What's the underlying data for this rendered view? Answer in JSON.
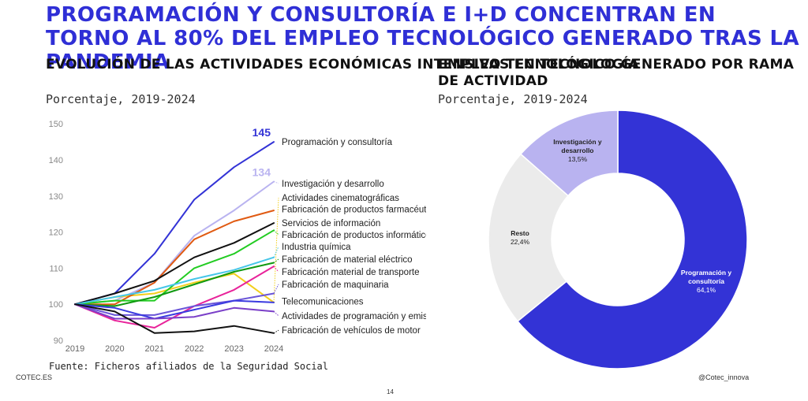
{
  "page": {
    "headline": "PROGRAMACIÓN Y CONSULTORÍA E I+D CONCENTRAN EN TORNO AL 80% DEL EMPLEO TECNOLÓGICO GENERADO TRAS LA PANDEMIA",
    "source": "Fuente: Ficheros afiliados de la Seguridad Social",
    "footer_left": "COTEC.ES",
    "footer_right": "@Cotec_innova",
    "page_number": "14"
  },
  "chart_data": [
    {
      "type": "line",
      "title": "EVOLUCIÓN DE LAS ACTIVIDADES ECONÓMICAS INTENSIVAS EN TECNOLOGÍA",
      "subtitle": "Porcentaje, 2019-2024",
      "x": [
        "2019",
        "2020",
        "2021",
        "2022",
        "2023",
        "2024"
      ],
      "ylim": [
        90,
        150
      ],
      "yticks": [
        90,
        100,
        110,
        120,
        130,
        140,
        150
      ],
      "grid": false,
      "value_labels": [
        {
          "series": "Programación y consultoría",
          "text": "145"
        },
        {
          "series": "Investigación y desarrollo",
          "text": "134"
        }
      ],
      "series": [
        {
          "name": "Programación y consultoría",
          "color": "#3333d6",
          "values": [
            100,
            103,
            114,
            129,
            138,
            145
          ],
          "label_y": 145
        },
        {
          "name": "Investigación y desarrollo",
          "color": "#b9b3f0",
          "values": [
            100,
            101,
            106,
            119,
            126,
            134
          ],
          "label_y": 133.5
        },
        {
          "name": "Actividades cinematográficas",
          "color": "#f2cf1c",
          "values": [
            100,
            102,
            103,
            106,
            108.5,
            100.5
          ],
          "label_y": 129.5
        },
        {
          "name": "Fabricación de productos farmacéuticos",
          "color": "#e05a12",
          "values": [
            100,
            100,
            106,
            118,
            123,
            126
          ],
          "label_y": 126.3
        },
        {
          "name": "Servicios de información",
          "color": "#111111",
          "values": [
            100,
            103,
            106.5,
            113,
            117,
            122.5
          ],
          "label_y": 122.5
        },
        {
          "name": "Fabricación de productos informáticos",
          "color": "#22cc22",
          "values": [
            100,
            101,
            101,
            110,
            114,
            120.5
          ],
          "label_y": 119.3
        },
        {
          "name": "Industria química",
          "color": "#46c6e8",
          "values": [
            100,
            102,
            104,
            107,
            109.5,
            113
          ],
          "label_y": 116
        },
        {
          "name": "Fabricación de material eléctrico",
          "color": "#119911",
          "values": [
            100,
            99.5,
            102,
            105.5,
            109,
            111.5
          ],
          "label_y": 112.5
        },
        {
          "name": "Fabricación material de transporte",
          "color": "#e8239a",
          "values": [
            100,
            95.5,
            93.5,
            99.5,
            104,
            110.5
          ],
          "label_y": 109
        },
        {
          "name": "Fabricación de maquinaria",
          "color": "#6a55d8",
          "values": [
            100,
            97,
            97,
            99.5,
            101,
            103
          ],
          "label_y": 105.5
        },
        {
          "name": "Telecomunicaciones",
          "color": "#3b3be0",
          "values": [
            100,
            99,
            96,
            98.5,
            101,
            100.5
          ],
          "label_y": 100.8
        },
        {
          "name": "Actividades de programación y emisión",
          "color": "#7a3fc8",
          "values": [
            100,
            96,
            96,
            96.5,
            99,
            98
          ],
          "label_y": 96.8
        },
        {
          "name": "Fabricación de vehículos de motor",
          "color": "#111111",
          "values": [
            100,
            98,
            92,
            92.5,
            94,
            92
          ],
          "label_y": 92.8
        }
      ]
    },
    {
      "type": "pie",
      "title": "EMPLEO TECNOLÓGICO GENERADO POR RAMA DE ACTIVIDAD",
      "subtitle": "Porcentaje, 2019-2024",
      "donut": true,
      "slices": [
        {
          "name": "Programación y consultoría",
          "value": 64.1,
          "value_text": "64,1%",
          "color": "#3333d6",
          "text_color": "#ffffff"
        },
        {
          "name": "Resto",
          "value": 22.4,
          "value_text": "22,4%",
          "color": "#ebebeb",
          "text_color": "#222222"
        },
        {
          "name": "Investigación y desarrollo",
          "value": 13.5,
          "value_text": "13,5%",
          "color": "#b9b3f0",
          "text_color": "#222222"
        }
      ]
    }
  ]
}
